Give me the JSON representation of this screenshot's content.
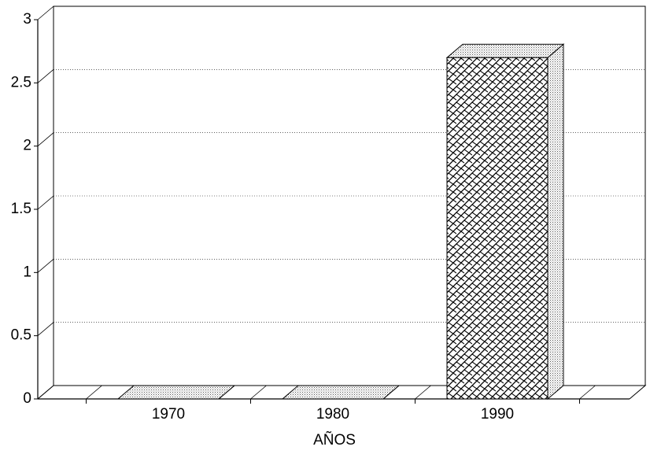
{
  "chart_data": {
    "type": "bar3d",
    "x_label": "AÑOS",
    "categories": [
      "1970",
      "1980",
      "1990"
    ],
    "values": [
      0,
      0,
      2.7
    ],
    "ylim": [
      0,
      3
    ],
    "yticks": [
      0,
      0.5,
      1,
      1.5,
      2,
      2.5,
      3
    ],
    "grid": true
  }
}
